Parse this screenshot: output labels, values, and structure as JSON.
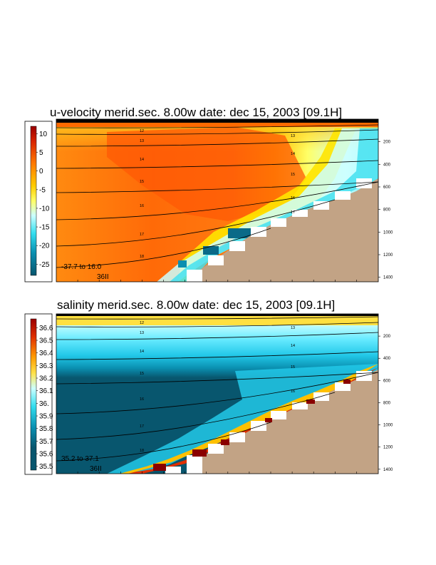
{
  "chart_data": [
    {
      "type": "heatmap",
      "title": "u-velocity merid.sec.  8.00w   date: dec 15, 2003   [09.1H]",
      "colorbar": {
        "ticks": [
          "10",
          "5",
          "0",
          "-5",
          "-10",
          "-15",
          "-20",
          "-25"
        ],
        "values": [
          10,
          5,
          0,
          -5,
          -10,
          -15,
          -20,
          -25
        ],
        "range": [
          -28,
          12
        ]
      },
      "depth_ticks": [
        "200",
        "400",
        "600",
        "800",
        "1000",
        "1200",
        "1400"
      ],
      "depth_values": [
        200,
        400,
        600,
        800,
        1000,
        1200,
        1400
      ],
      "contour_labels": [
        "12",
        "13",
        "14",
        "15",
        "16",
        "17",
        "18"
      ],
      "min_max_label": "-37.7 to  16.0",
      "sigma_label": "36II",
      "colors": {
        "land": "#c2a385"
      }
    },
    {
      "type": "heatmap",
      "title": "salinity merid.sec.  8.00w   date: dec 15, 2003   [09.1H]",
      "colorbar": {
        "ticks": [
          "36.6",
          "36.5",
          "36.4",
          "36.3",
          "36.2",
          "36.1",
          "36.",
          "35.9",
          "35.8",
          "35.7",
          "35.6",
          "35.5"
        ],
        "values": [
          36.6,
          36.5,
          36.4,
          36.3,
          36.2,
          36.1,
          36.0,
          35.9,
          35.8,
          35.7,
          35.6,
          35.5
        ],
        "range": [
          35.47,
          36.67
        ]
      },
      "depth_ticks": [
        "200",
        "400",
        "600",
        "800",
        "1000",
        "1200",
        "1400"
      ],
      "depth_values": [
        200,
        400,
        600,
        800,
        1000,
        1200,
        1400
      ],
      "contour_labels": [
        "12",
        "13",
        "14",
        "15",
        "16",
        "17",
        "18"
      ],
      "min_max_label": "35.2 to  37.1",
      "sigma_label": "36II",
      "colors": {
        "land": "#c2a385"
      }
    }
  ]
}
